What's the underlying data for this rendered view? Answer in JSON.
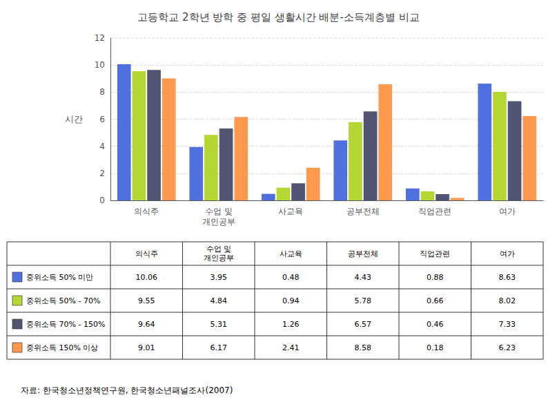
{
  "chart_data": {
    "type": "bar",
    "title": "고등학교 2학년 방학 중 평일 생활시간 배분-소득계층별 비교",
    "categories": [
      "의식주",
      "수업 및\n개인공부",
      "사교육",
      "공부전체",
      "직업관련",
      "여가"
    ],
    "series": [
      {
        "name": "중위소득 50% 미만",
        "values": [
          10.06,
          3.95,
          0.48,
          4.43,
          0.88,
          8.63
        ]
      },
      {
        "name": "중위소득 50% - 70%",
        "values": [
          9.55,
          4.84,
          0.94,
          5.78,
          0.66,
          8.02
        ]
      },
      {
        "name": "중위소득 70% - 150%",
        "values": [
          9.64,
          5.31,
          1.26,
          6.57,
          0.46,
          7.33
        ]
      },
      {
        "name": "중위소득 150% 이상",
        "values": [
          9.01,
          6.17,
          2.41,
          8.58,
          0.18,
          6.23
        ]
      }
    ],
    "ylabel": "시간",
    "ylim": [
      0,
      12
    ],
    "yticks": [
      0,
      2,
      4,
      6,
      8,
      10,
      12
    ],
    "grid": true,
    "table": {
      "columns": [
        "의식주",
        "수업 및\n개인공부",
        "사교육",
        "공부전체",
        "직업관련",
        "여가"
      ],
      "rows": [
        {
          "label": "중위소득 50% 미만",
          "values": [
            10.06,
            3.95,
            0.48,
            4.43,
            0.88,
            8.63
          ]
        },
        {
          "label": "중위소득 50% - 70%",
          "values": [
            9.55,
            4.84,
            0.94,
            5.78,
            0.66,
            8.02
          ]
        },
        {
          "label": "중위소득 70% - 150%",
          "values": [
            9.64,
            5.31,
            1.26,
            6.57,
            0.46,
            7.33
          ]
        },
        {
          "label": "중위소득 150% 이상",
          "values": [
            9.01,
            6.17,
            2.41,
            8.58,
            0.18,
            6.23
          ]
        }
      ]
    },
    "source": "자료: 한국청소년정책연구원, 한국청소년패널조사(2007)"
  }
}
